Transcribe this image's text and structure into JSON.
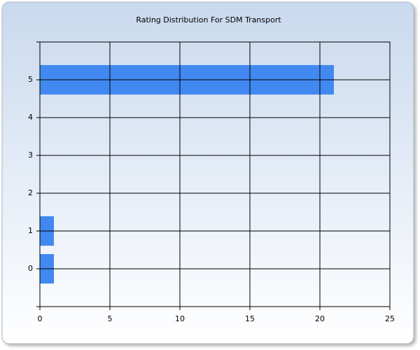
{
  "chart_data": {
    "type": "bar",
    "orientation": "horizontal",
    "title": "Rating Distribution For SDM Transport",
    "categories": [
      "0",
      "1",
      "2",
      "3",
      "4",
      "5"
    ],
    "values": [
      1,
      1,
      0,
      0,
      0,
      21
    ],
    "color": "#4189f0",
    "xlim": [
      0,
      25
    ],
    "xticks": [
      0,
      5,
      10,
      15,
      20,
      25
    ],
    "grid": true
  }
}
